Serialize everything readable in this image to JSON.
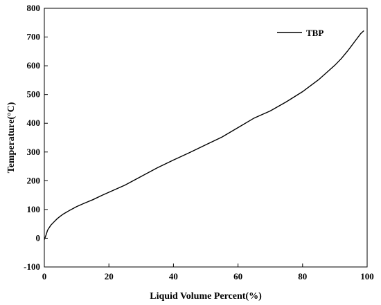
{
  "chart_data": {
    "type": "line",
    "xlabel": "Liquid Volume Percent(%)",
    "ylabel": "Temperature(°C)",
    "xlim": [
      0,
      100
    ],
    "ylim": [
      -100,
      800
    ],
    "xticks": [
      0,
      20,
      40,
      60,
      80,
      100
    ],
    "yticks": [
      -100,
      0,
      100,
      200,
      300,
      400,
      500,
      600,
      700,
      800
    ],
    "xtick_labels": [
      "0",
      "20",
      "40",
      "60",
      "80",
      "100"
    ],
    "ytick_labels": [
      "-100",
      "0",
      "100",
      "200",
      "300",
      "400",
      "500",
      "600",
      "700",
      "800"
    ],
    "grid": false,
    "legend": {
      "position": "top-right",
      "entries": [
        "TBP"
      ]
    },
    "series": [
      {
        "name": "TBP",
        "color": "#000000",
        "x": [
          0,
          0.5,
          1,
          2,
          3,
          4,
          5,
          6,
          8,
          10,
          12,
          15,
          18,
          20,
          25,
          30,
          35,
          40,
          45,
          50,
          55,
          60,
          65,
          70,
          75,
          80,
          85,
          90,
          92,
          94,
          96,
          98,
          99
        ],
        "y": [
          -5,
          10,
          28,
          45,
          57,
          68,
          77,
          85,
          98,
          110,
          120,
          134,
          150,
          160,
          185,
          215,
          245,
          272,
          298,
          325,
          352,
          385,
          418,
          443,
          475,
          510,
          552,
          602,
          625,
          652,
          682,
          712,
          722
        ]
      }
    ]
  }
}
